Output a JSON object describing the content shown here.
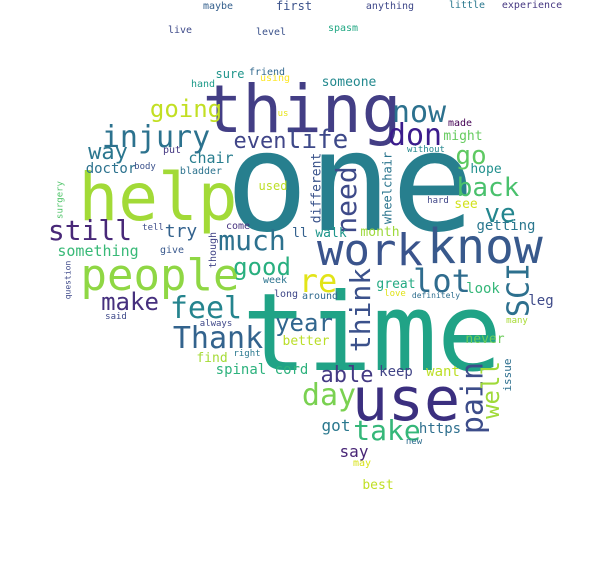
{
  "words": [
    {
      "text": "one",
      "color": "#277f8e",
      "rotate": false
    },
    {
      "text": "time",
      "color": "#20a386",
      "rotate": false
    },
    {
      "text": "help",
      "color": "#a2da37",
      "rotate": false
    },
    {
      "text": "thing",
      "color": "#433e85",
      "rotate": false
    },
    {
      "text": "use",
      "color": "#3b2f7f",
      "rotate": false
    },
    {
      "text": "know",
      "color": "#38598c",
      "rotate": false
    },
    {
      "text": "work",
      "color": "#3a548c",
      "rotate": false
    },
    {
      "text": "people",
      "color": "#8fd744",
      "rotate": false
    },
    {
      "text": "injury",
      "color": "#2c728e",
      "rotate": false
    },
    {
      "text": "now",
      "color": "#2c718e",
      "rotate": false
    },
    {
      "text": "don",
      "color": "#3b1c8c",
      "rotate": false
    },
    {
      "text": "life",
      "color": "#3e4989",
      "rotate": false
    },
    {
      "text": "even",
      "color": "#404588",
      "rotate": false
    },
    {
      "text": "going",
      "color": "#c2df23",
      "rotate": false
    },
    {
      "text": "way",
      "color": "#2a768e",
      "rotate": false
    },
    {
      "text": "still",
      "color": "#482878",
      "rotate": false
    },
    {
      "text": "much",
      "color": "#2d718e",
      "rotate": false
    },
    {
      "text": "need",
      "color": "#3e4a89",
      "rotate": true
    },
    {
      "text": "go",
      "color": "#5ec962",
      "rotate": false
    },
    {
      "text": "back",
      "color": "#4ac16d",
      "rotate": false
    },
    {
      "text": "ve",
      "color": "#24868e",
      "rotate": false
    },
    {
      "text": "SCI",
      "color": "#2d708e",
      "rotate": true
    },
    {
      "text": "lot",
      "color": "#2f6c8e",
      "rotate": false
    },
    {
      "text": "re",
      "color": "#e2e418",
      "rotate": false
    },
    {
      "text": "think",
      "color": "#3b518b",
      "rotate": true
    },
    {
      "text": "feel",
      "color": "#25848e",
      "rotate": false
    },
    {
      "text": "make",
      "color": "#46307e",
      "rotate": false
    },
    {
      "text": "good",
      "color": "#29af7f",
      "rotate": false
    },
    {
      "text": "try",
      "color": "#33628d",
      "rotate": false
    },
    {
      "text": "Thank",
      "color": "#33638d",
      "rotate": false
    },
    {
      "text": "year",
      "color": "#31668e",
      "rotate": false
    },
    {
      "text": "day",
      "color": "#7ad151",
      "rotate": false
    },
    {
      "text": "able",
      "color": "#443a83",
      "rotate": false
    },
    {
      "text": "take",
      "color": "#35b779",
      "rotate": false
    },
    {
      "text": "pain",
      "color": "#3d4d8a",
      "rotate": true
    },
    {
      "text": "well",
      "color": "#a0da39",
      "rotate": true
    },
    {
      "text": "say",
      "color": "#482576",
      "rotate": false
    },
    {
      "text": "got",
      "color": "#2a788e",
      "rotate": false
    },
    {
      "text": "https",
      "color": "#2e6f8e",
      "rotate": false
    },
    {
      "text": "keep",
      "color": "#414487",
      "rotate": false
    },
    {
      "text": "want",
      "color": "#bddf26",
      "rotate": false
    },
    {
      "text": "never",
      "color": "#6ccd5a",
      "rotate": false
    },
    {
      "text": "look",
      "color": "#35b779",
      "rotate": false
    },
    {
      "text": "leg",
      "color": "#3e4a89",
      "rotate": false
    },
    {
      "text": "getting",
      "color": "#2a778e",
      "rotate": false
    },
    {
      "text": "hope",
      "color": "#21908d",
      "rotate": false
    },
    {
      "text": "see",
      "color": "#d2e21b",
      "rotate": false
    },
    {
      "text": "might",
      "color": "#65cb5e",
      "rotate": false
    },
    {
      "text": "chair",
      "color": "#287d8e",
      "rotate": false
    },
    {
      "text": "doctor",
      "color": "#2c728e",
      "rotate": false
    },
    {
      "text": "something",
      "color": "#38b977",
      "rotate": false
    },
    {
      "text": "spinal cord",
      "color": "#2db27d",
      "rotate": false
    },
    {
      "text": "month",
      "color": "#9dd93b",
      "rotate": false
    },
    {
      "text": "better",
      "color": "#bade28",
      "rotate": false
    },
    {
      "text": "find",
      "color": "#a5db36",
      "rotate": false
    },
    {
      "text": "great",
      "color": "#24aa83",
      "rotate": false
    },
    {
      "text": "someone",
      "color": "#23898e",
      "rotate": false
    },
    {
      "text": "sure",
      "color": "#1f958b",
      "rotate": false
    },
    {
      "text": "friend",
      "color": "#31688e",
      "rotate": false
    },
    {
      "text": "using",
      "color": "#fde725",
      "rotate": false
    },
    {
      "text": "hand",
      "color": "#1e9b8a",
      "rotate": false
    },
    {
      "text": "us",
      "color": "#e7e419",
      "rotate": false
    },
    {
      "text": "made",
      "color": "#440154",
      "rotate": false
    },
    {
      "text": "without",
      "color": "#24878e",
      "rotate": false
    },
    {
      "text": "wheelchair",
      "color": "#2b758e",
      "rotate": true
    },
    {
      "text": "different",
      "color": "#3a538b",
      "rotate": true
    },
    {
      "text": "used",
      "color": "#bddf26",
      "rotate": false
    },
    {
      "text": "put",
      "color": "#453882",
      "rotate": false
    },
    {
      "text": "body",
      "color": "#3b518b",
      "rotate": false
    },
    {
      "text": "bladder",
      "color": "#2c738e",
      "rotate": false
    },
    {
      "text": "walk",
      "color": "#1f968b",
      "rotate": false
    },
    {
      "text": "ll",
      "color": "#34608d",
      "rotate": false
    },
    {
      "text": "come",
      "color": "#46327e",
      "rotate": false
    },
    {
      "text": "tell",
      "color": "#3e4c8a",
      "rotate": false
    },
    {
      "text": "give",
      "color": "#38588c",
      "rotate": false
    },
    {
      "text": "though",
      "color": "#414487",
      "rotate": true
    },
    {
      "text": "week",
      "color": "#2c738e",
      "rotate": false
    },
    {
      "text": "long",
      "color": "#3f4788",
      "rotate": false
    },
    {
      "text": "around",
      "color": "#306a8e",
      "rotate": false
    },
    {
      "text": "love",
      "color": "#dfe318",
      "rotate": false
    },
    {
      "text": "definitely",
      "color": "#2e6e8e",
      "rotate": false
    },
    {
      "text": "always",
      "color": "#3f4889",
      "rotate": false
    },
    {
      "text": "right",
      "color": "#2a788e",
      "rotate": false
    },
    {
      "text": "said",
      "color": "#3e4989",
      "rotate": false
    },
    {
      "text": "many",
      "color": "#a8db34",
      "rotate": false
    },
    {
      "text": "issue",
      "color": "#2e6f8e",
      "rotate": true
    },
    {
      "text": "new",
      "color": "#2e6d8e",
      "rotate": false
    },
    {
      "text": "may",
      "color": "#d8e219",
      "rotate": false
    },
    {
      "text": "best",
      "color": "#c0df25",
      "rotate": false
    },
    {
      "text": "hard",
      "color": "#404688",
      "rotate": false
    },
    {
      "text": "surgery",
      "color": "#50c46a",
      "rotate": true
    },
    {
      "text": "question",
      "color": "#3e4989",
      "rotate": true
    },
    {
      "text": "maybe",
      "color": "#35608d",
      "rotate": false
    },
    {
      "text": "first",
      "color": "#3b528b",
      "rotate": false
    },
    {
      "text": "anything",
      "color": "#3f4889",
      "rotate": false
    },
    {
      "text": "little",
      "color": "#2a788e",
      "rotate": false
    },
    {
      "text": "experience",
      "color": "#453781",
      "rotate": false
    },
    {
      "text": "live",
      "color": "#3e4a89",
      "rotate": false
    },
    {
      "text": "level",
      "color": "#3b528b",
      "rotate": false
    },
    {
      "text": "spasm",
      "color": "#22a884",
      "rotate": false
    }
  ]
}
